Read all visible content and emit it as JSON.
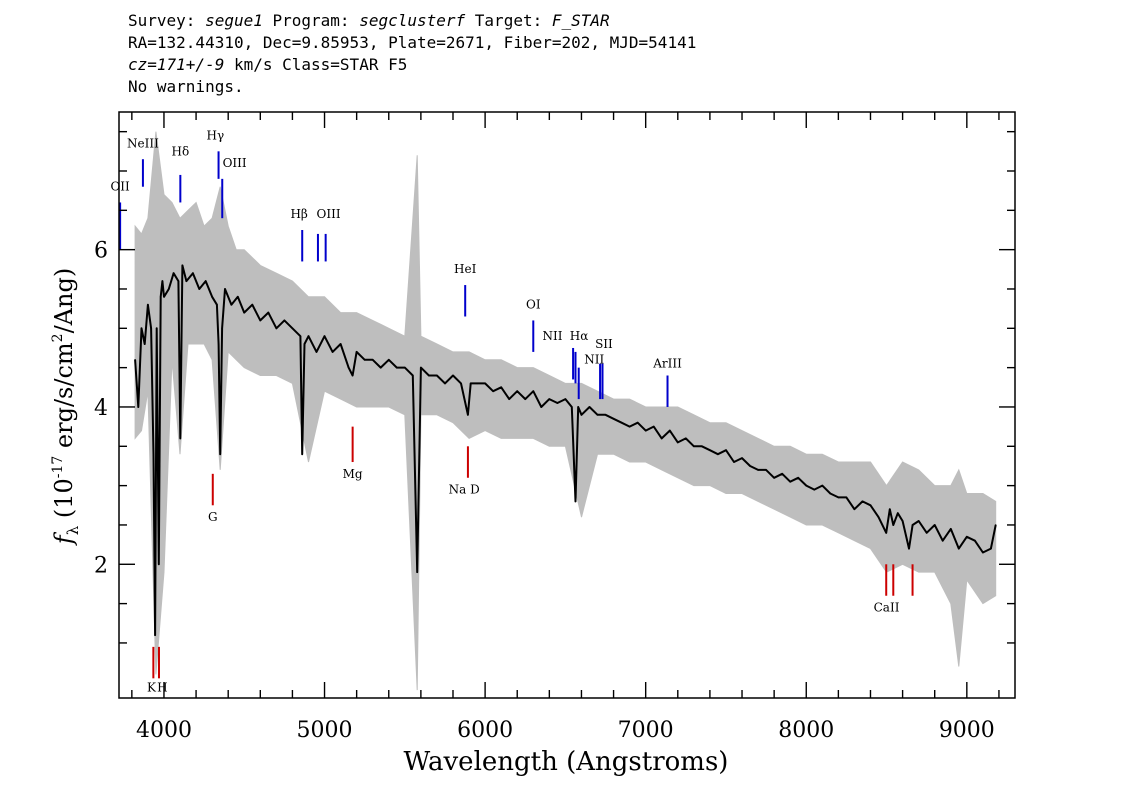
{
  "header": {
    "line1": {
      "survey_label": "Survey: ",
      "survey": "segue1",
      "program_label": " Program: ",
      "program": "segclusterf",
      "target_label": " Target: ",
      "target": "F_STAR"
    },
    "line2": "RA=132.44310, Dec=9.85953, Plate=2671, Fiber=202, MJD=54141",
    "line3": {
      "cz": "cz=171+/-9",
      "rest": " km/s Class=STAR F5"
    },
    "line4": "No warnings."
  },
  "chart_data": {
    "type": "line",
    "xlabel": "Wavelength (Angstroms)",
    "ylabel_main": "f",
    "ylabel_sub": "λ",
    "ylabel_unit_a": " (10",
    "ylabel_exp": "-17",
    "ylabel_unit_b": " erg/s/cm",
    "ylabel_exp2": "2",
    "ylabel_unit_c": "/Ang)",
    "xlim": [
      3720,
      9300
    ],
    "ylim": [
      0.3,
      7.75
    ],
    "x_ticks": [
      "4000",
      "5000",
      "6000",
      "7000",
      "8000",
      "9000"
    ],
    "y_ticks": [
      "2",
      "4",
      "6"
    ],
    "colors": {
      "flux": "#000000",
      "error": "#bebebe",
      "emission": "#0000cc",
      "absorption": "#cc0000"
    },
    "series": [
      {
        "role": "flux",
        "x": [
          3820,
          3840,
          3860,
          3880,
          3900,
          3920,
          3935,
          3945,
          3955,
          3968,
          3980,
          3990,
          4000,
          4030,
          4060,
          4090,
          4102,
          4115,
          4140,
          4180,
          4220,
          4260,
          4300,
          4330,
          4340,
          4350,
          4362,
          4380,
          4420,
          4460,
          4500,
          4550,
          4600,
          4650,
          4700,
          4750,
          4800,
          4850,
          4861,
          4875,
          4900,
          4950,
          5000,
          5050,
          5100,
          5150,
          5175,
          5200,
          5250,
          5300,
          5350,
          5400,
          5450,
          5500,
          5550,
          5577,
          5600,
          5650,
          5700,
          5750,
          5800,
          5850,
          5893,
          5910,
          5950,
          6000,
          6050,
          6100,
          6150,
          6200,
          6250,
          6300,
          6350,
          6400,
          6450,
          6500,
          6540,
          6563,
          6580,
          6600,
          6650,
          6700,
          6750,
          6800,
          6850,
          6900,
          6950,
          7000,
          7050,
          7100,
          7150,
          7200,
          7250,
          7300,
          7350,
          7400,
          7450,
          7500,
          7550,
          7600,
          7650,
          7700,
          7750,
          7800,
          7850,
          7900,
          7950,
          8000,
          8050,
          8100,
          8150,
          8200,
          8250,
          8300,
          8350,
          8400,
          8450,
          8498,
          8520,
          8542,
          8570,
          8600,
          8640,
          8662,
          8700,
          8750,
          8800,
          8850,
          8900,
          8950,
          9000,
          9050,
          9100,
          9150,
          9180
        ],
        "y": [
          4.6,
          4.0,
          5.0,
          4.8,
          5.3,
          5.0,
          3.4,
          1.1,
          5.0,
          2.0,
          5.4,
          5.6,
          5.4,
          5.5,
          5.7,
          5.6,
          3.6,
          5.8,
          5.6,
          5.7,
          5.5,
          5.6,
          5.4,
          5.3,
          4.8,
          3.4,
          5.0,
          5.5,
          5.3,
          5.4,
          5.2,
          5.3,
          5.1,
          5.2,
          5.0,
          5.1,
          5.0,
          4.9,
          3.4,
          4.8,
          4.9,
          4.7,
          4.9,
          4.7,
          4.8,
          4.5,
          4.4,
          4.7,
          4.6,
          4.6,
          4.5,
          4.6,
          4.5,
          4.5,
          4.4,
          1.9,
          4.5,
          4.4,
          4.4,
          4.3,
          4.4,
          4.3,
          3.9,
          4.3,
          4.3,
          4.3,
          4.2,
          4.25,
          4.1,
          4.2,
          4.1,
          4.2,
          4.0,
          4.1,
          4.05,
          4.1,
          4.0,
          2.8,
          4.0,
          3.9,
          4.0,
          3.9,
          3.9,
          3.85,
          3.8,
          3.75,
          3.8,
          3.7,
          3.75,
          3.6,
          3.7,
          3.55,
          3.6,
          3.5,
          3.5,
          3.45,
          3.4,
          3.45,
          3.3,
          3.35,
          3.25,
          3.2,
          3.2,
          3.1,
          3.15,
          3.05,
          3.1,
          3.0,
          2.95,
          3.0,
          2.9,
          2.85,
          2.85,
          2.7,
          2.8,
          2.75,
          2.6,
          2.4,
          2.7,
          2.5,
          2.65,
          2.55,
          2.2,
          2.5,
          2.55,
          2.4,
          2.5,
          2.3,
          2.45,
          2.2,
          2.35,
          2.3,
          2.15,
          2.2,
          2.5
        ]
      },
      {
        "role": "error",
        "x": [
          3820,
          3860,
          3900,
          3950,
          4000,
          4050,
          4100,
          4150,
          4200,
          4250,
          4300,
          4350,
          4400,
          4450,
          4500,
          4600,
          4700,
          4800,
          4900,
          5000,
          5100,
          5200,
          5300,
          5400,
          5500,
          5577,
          5600,
          5700,
          5800,
          5900,
          6000,
          6100,
          6200,
          6300,
          6400,
          6500,
          6600,
          6700,
          6800,
          6900,
          7000,
          7100,
          7200,
          7300,
          7400,
          7500,
          7600,
          7700,
          7800,
          7900,
          8000,
          8100,
          8200,
          8300,
          8400,
          8500,
          8600,
          8700,
          8800,
          8900,
          8950,
          9000,
          9100,
          9180
        ],
        "y_hi": [
          6.3,
          6.2,
          6.4,
          7.5,
          6.7,
          6.6,
          6.4,
          6.5,
          6.6,
          6.3,
          6.4,
          6.8,
          6.3,
          6.0,
          6.0,
          5.8,
          5.7,
          5.6,
          5.4,
          5.4,
          5.2,
          5.2,
          5.1,
          5.0,
          4.9,
          7.2,
          4.9,
          4.8,
          4.7,
          4.7,
          4.6,
          4.6,
          4.5,
          4.5,
          4.4,
          4.3,
          4.3,
          4.2,
          4.1,
          4.1,
          4.0,
          4.0,
          4.0,
          3.9,
          3.8,
          3.8,
          3.7,
          3.6,
          3.5,
          3.5,
          3.4,
          3.4,
          3.3,
          3.3,
          3.3,
          3.0,
          3.3,
          3.2,
          3.0,
          3.0,
          3.2,
          2.9,
          2.9,
          2.8
        ],
        "y_lo": [
          3.6,
          3.7,
          4.2,
          0.6,
          1.9,
          4.6,
          3.4,
          4.8,
          4.8,
          4.8,
          4.6,
          3.2,
          4.7,
          4.6,
          4.5,
          4.4,
          4.4,
          4.3,
          3.3,
          4.2,
          4.1,
          4.0,
          4.0,
          4.0,
          3.9,
          0.4,
          3.9,
          3.9,
          3.8,
          3.6,
          3.7,
          3.6,
          3.6,
          3.6,
          3.5,
          3.5,
          2.6,
          3.4,
          3.4,
          3.3,
          3.3,
          3.2,
          3.1,
          3.0,
          3.0,
          2.9,
          2.9,
          2.8,
          2.7,
          2.6,
          2.5,
          2.5,
          2.4,
          2.3,
          2.2,
          1.9,
          2.0,
          1.9,
          1.9,
          1.5,
          0.7,
          1.8,
          1.5,
          1.6
        ]
      }
    ],
    "emission_lines": [
      {
        "label": "OII",
        "x": 3727,
        "y1": 6.0,
        "y2": 6.6,
        "tx": 3727,
        "ty": 6.75
      },
      {
        "label": "NeIII",
        "x": 3869,
        "y1": 6.8,
        "y2": 7.15,
        "tx": 3869,
        "ty": 7.3
      },
      {
        "label": "Hδ",
        "x": 4102,
        "y1": 6.6,
        "y2": 6.95,
        "tx": 4102,
        "ty": 7.2
      },
      {
        "label": "Hγ",
        "x": 4340,
        "y1": 6.9,
        "y2": 7.25,
        "tx": 4320,
        "ty": 7.4
      },
      {
        "label": "OIII",
        "x": 4363,
        "y1": 6.4,
        "y2": 6.9,
        "tx": 4440,
        "ty": 7.05
      },
      {
        "label": "Hβ",
        "x": 4861,
        "y1": 5.85,
        "y2": 6.25,
        "tx": 4842,
        "ty": 6.4
      },
      {
        "label": "OIII",
        "x": 4959,
        "y1": 5.85,
        "y2": 6.2,
        "tx": 5025,
        "ty": 6.4
      },
      {
        "label": "",
        "x": 5007,
        "y1": 5.85,
        "y2": 6.2,
        "tx": 5007,
        "ty": 6.4
      },
      {
        "label": "HeI",
        "x": 5876,
        "y1": 5.15,
        "y2": 5.55,
        "tx": 5876,
        "ty": 5.7
      },
      {
        "label": "OI",
        "x": 6300,
        "y1": 4.7,
        "y2": 5.1,
        "tx": 6300,
        "ty": 5.25
      },
      {
        "label": "NII",
        "x": 6548,
        "y1": 4.35,
        "y2": 4.75,
        "tx": 6420,
        "ty": 4.85
      },
      {
        "label": "Hα",
        "x": 6563,
        "y1": 4.3,
        "y2": 4.7,
        "tx": 6585,
        "ty": 4.85
      },
      {
        "label": "",
        "x": 6583,
        "y1": 4.1,
        "y2": 4.5,
        "tx": 6583,
        "ty": 4.6
      },
      {
        "label": "SII",
        "x": 6716,
        "y1": 4.1,
        "y2": 4.55,
        "tx": 6740,
        "ty": 4.75
      },
      {
        "label": "NII",
        "x": 6731,
        "y1": 4.1,
        "y2": 4.55,
        "tx": 6680,
        "ty": 4.55
      },
      {
        "label": "ArIII",
        "x": 7136,
        "y1": 4.0,
        "y2": 4.4,
        "tx": 7136,
        "ty": 4.5
      }
    ],
    "absorption_lines": [
      {
        "label": "K",
        "x": 3934,
        "y1": 0.55,
        "y2": 0.95,
        "tx": 3922,
        "ty": 0.38
      },
      {
        "label": "H",
        "x": 3969,
        "y1": 0.55,
        "y2": 0.95,
        "tx": 3990,
        "ty": 0.38
      },
      {
        "label": "G",
        "x": 4304,
        "y1": 2.75,
        "y2": 3.15,
        "tx": 4304,
        "ty": 2.55
      },
      {
        "label": "Mg",
        "x": 5175,
        "y1": 3.3,
        "y2": 3.75,
        "tx": 5175,
        "ty": 3.1
      },
      {
        "label": "Na D",
        "x": 5893,
        "y1": 3.1,
        "y2": 3.5,
        "tx": 5870,
        "ty": 2.9
      },
      {
        "label": "CaII",
        "x": 8498,
        "y1": 1.6,
        "y2": 2.0,
        "tx": 8500,
        "ty": 1.4
      },
      {
        "label": "",
        "x": 8542,
        "y1": 1.6,
        "y2": 2.0,
        "tx": 8542,
        "ty": 1.4
      },
      {
        "label": "",
        "x": 8662,
        "y1": 1.6,
        "y2": 2.0,
        "tx": 8662,
        "ty": 1.4
      }
    ]
  }
}
